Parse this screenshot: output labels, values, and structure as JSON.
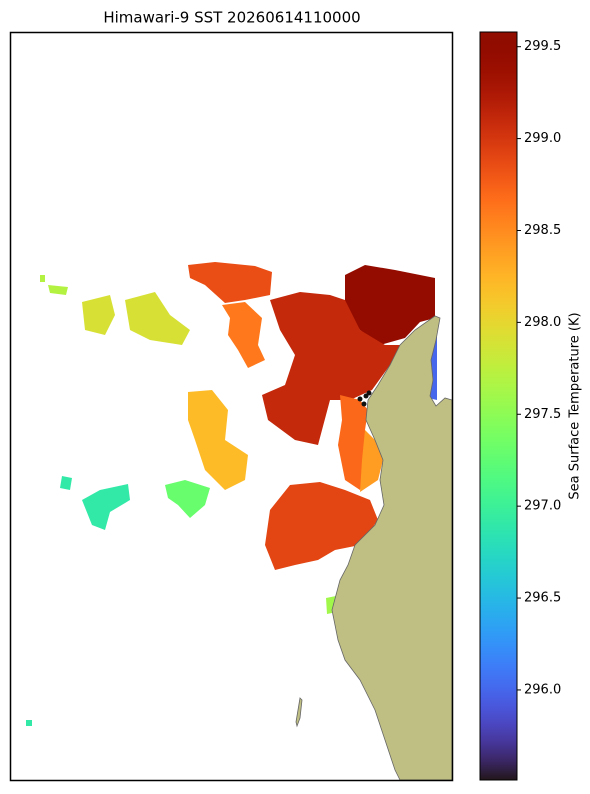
{
  "chart_data": {
    "type": "map",
    "title": "Himawari-9 SST 20260614110000",
    "colorbar_label": "Sea Surface Temperature (K)",
    "colormap": "turbo",
    "clim": [
      295.51,
      299.58
    ],
    "cticks": [
      {
        "value": 296,
        "label": "296.0"
      },
      {
        "value": 296.5,
        "label": "296.5"
      },
      {
        "value": 297,
        "label": "297.0"
      },
      {
        "value": 297.5,
        "label": "297.5"
      },
      {
        "value": 298,
        "label": "298.0"
      },
      {
        "value": 298.5,
        "label": "298.5"
      },
      {
        "value": 299,
        "label": "299.0"
      },
      {
        "value": 299.5,
        "label": "299.5"
      }
    ],
    "values": [
      299.45,
      299.1,
      298.85,
      298.7,
      298.9,
      298.2,
      297.9,
      296.9,
      297.3,
      296.0,
      297.7,
      298.6,
      297.6,
      296.9,
      298.4
    ]
  }
}
